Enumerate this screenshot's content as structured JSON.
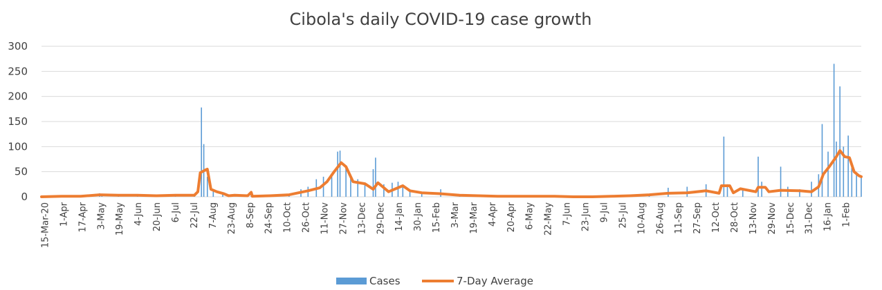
{
  "chart_data": {
    "type": "bar",
    "title": "Cibola's daily COVID-19 case growth",
    "xlabel": "",
    "ylabel": "",
    "ylim": [
      0,
      300
    ],
    "yticks": [
      "0",
      "50",
      "100",
      "150",
      "200",
      "250",
      "300"
    ],
    "grid": true,
    "legend_position": "bottom",
    "date_range": [
      "2020-03-15",
      "2022-02-05"
    ],
    "x_tick_labels": [
      "15-Mar-20",
      "1-Apr",
      "17-Apr",
      "3-May",
      "19-May",
      "4-Jun",
      "20-Jun",
      "6-Jul",
      "22-Jul",
      "7-Aug",
      "23-Aug",
      "8-Sep",
      "24-Sep",
      "10-Oct",
      "26-Oct",
      "11-Nov",
      "27-Nov",
      "13-Dec",
      "29-Dec",
      "14-Jan",
      "30-Jan",
      "15-Feb",
      "3-Mar",
      "19-Mar",
      "4-Apr",
      "20-Apr",
      "6-May",
      "22-May",
      "7-Jun",
      "23-Jun",
      "9-Jul",
      "25-Jul",
      "10-Aug",
      "26-Aug",
      "11-Sep",
      "27-Sep",
      "12-Oct",
      "28-Oct",
      "13-Nov",
      "29-Nov",
      "15-Dec",
      "31-Dec",
      "16-Jan",
      "1-Feb"
    ],
    "series": [
      {
        "name": "Cases",
        "type": "bar",
        "color": "#5b9bd5",
        "approx_points": [
          [
            "2020-03-15",
            0
          ],
          [
            "2020-04-01",
            1
          ],
          [
            "2020-04-20",
            2
          ],
          [
            "2020-05-03",
            7
          ],
          [
            "2020-05-05",
            5
          ],
          [
            "2020-05-19",
            4
          ],
          [
            "2020-06-04",
            5
          ],
          [
            "2020-06-20",
            2
          ],
          [
            "2020-07-06",
            5
          ],
          [
            "2020-07-22",
            3
          ],
          [
            "2020-07-28",
            178
          ],
          [
            "2020-07-30",
            105
          ],
          [
            "2020-08-02",
            40
          ],
          [
            "2020-08-07",
            12
          ],
          [
            "2020-08-15",
            8
          ],
          [
            "2020-08-23",
            5
          ],
          [
            "2020-09-01",
            2
          ],
          [
            "2020-09-08",
            10
          ],
          [
            "2020-09-15",
            2
          ],
          [
            "2020-09-24",
            4
          ],
          [
            "2020-10-10",
            6
          ],
          [
            "2020-10-20",
            15
          ],
          [
            "2020-10-26",
            20
          ],
          [
            "2020-11-02",
            35
          ],
          [
            "2020-11-08",
            40
          ],
          [
            "2020-11-15",
            45
          ],
          [
            "2020-11-20",
            90
          ],
          [
            "2020-11-22",
            92
          ],
          [
            "2020-11-27",
            60
          ],
          [
            "2020-12-01",
            40
          ],
          [
            "2020-12-07",
            35
          ],
          [
            "2020-12-13",
            25
          ],
          [
            "2020-12-20",
            55
          ],
          [
            "2020-12-22",
            78
          ],
          [
            "2020-12-29",
            25
          ],
          [
            "2021-01-05",
            28
          ],
          [
            "2021-01-10",
            30
          ],
          [
            "2021-01-14",
            20
          ],
          [
            "2021-01-20",
            10
          ],
          [
            "2021-01-30",
            8
          ],
          [
            "2021-02-15",
            15
          ],
          [
            "2021-03-03",
            3
          ],
          [
            "2021-03-19",
            2
          ],
          [
            "2021-04-04",
            2
          ],
          [
            "2021-04-20",
            1
          ],
          [
            "2021-05-06",
            1
          ],
          [
            "2021-05-22",
            1
          ],
          [
            "2021-06-07",
            0
          ],
          [
            "2021-06-23",
            1
          ],
          [
            "2021-07-09",
            1
          ],
          [
            "2021-07-25",
            2
          ],
          [
            "2021-08-10",
            5
          ],
          [
            "2021-08-26",
            18
          ],
          [
            "2021-09-11",
            20
          ],
          [
            "2021-09-27",
            25
          ],
          [
            "2021-10-12",
            120
          ],
          [
            "2021-10-15",
            25
          ],
          [
            "2021-10-28",
            15
          ],
          [
            "2021-11-10",
            80
          ],
          [
            "2021-11-13",
            30
          ],
          [
            "2021-11-29",
            60
          ],
          [
            "2021-12-05",
            20
          ],
          [
            "2021-12-15",
            15
          ],
          [
            "2021-12-25",
            30
          ],
          [
            "2021-12-31",
            45
          ],
          [
            "2022-01-03",
            145
          ],
          [
            "2022-01-08",
            90
          ],
          [
            "2022-01-13",
            265
          ],
          [
            "2022-01-15",
            110
          ],
          [
            "2022-01-18",
            220
          ],
          [
            "2022-01-21",
            100
          ],
          [
            "2022-01-25",
            122
          ],
          [
            "2022-01-28",
            60
          ],
          [
            "2022-02-01",
            45
          ],
          [
            "2022-02-05",
            40
          ]
        ]
      },
      {
        "name": "7-Day Average",
        "type": "line",
        "color": "#ed7d31",
        "approx_points": [
          [
            "2020-03-15",
            0
          ],
          [
            "2020-04-01",
            1
          ],
          [
            "2020-04-17",
            1
          ],
          [
            "2020-05-03",
            4
          ],
          [
            "2020-05-19",
            3
          ],
          [
            "2020-06-04",
            3
          ],
          [
            "2020-06-20",
            2
          ],
          [
            "2020-07-06",
            3
          ],
          [
            "2020-07-22",
            3
          ],
          [
            "2020-07-25",
            10
          ],
          [
            "2020-07-27",
            48
          ],
          [
            "2020-07-31",
            53
          ],
          [
            "2020-08-02",
            55
          ],
          [
            "2020-08-05",
            15
          ],
          [
            "2020-08-10",
            10
          ],
          [
            "2020-08-16",
            6
          ],
          [
            "2020-08-20",
            2
          ],
          [
            "2020-08-25",
            3
          ],
          [
            "2020-09-05",
            2
          ],
          [
            "2020-09-08",
            9
          ],
          [
            "2020-09-09",
            1
          ],
          [
            "2020-09-24",
            2
          ],
          [
            "2020-10-10",
            4
          ],
          [
            "2020-10-26",
            12
          ],
          [
            "2020-11-05",
            18
          ],
          [
            "2020-11-11",
            30
          ],
          [
            "2020-11-17",
            50
          ],
          [
            "2020-11-23",
            68
          ],
          [
            "2020-11-27",
            60
          ],
          [
            "2020-12-03",
            30
          ],
          [
            "2020-12-13",
            26
          ],
          [
            "2020-12-20",
            15
          ],
          [
            "2020-12-24",
            28
          ],
          [
            "2020-12-29",
            18
          ],
          [
            "2021-01-02",
            10
          ],
          [
            "2021-01-10",
            18
          ],
          [
            "2021-01-14",
            22
          ],
          [
            "2021-01-20",
            12
          ],
          [
            "2021-01-30",
            8
          ],
          [
            "2021-02-15",
            6
          ],
          [
            "2021-03-03",
            3
          ],
          [
            "2021-03-19",
            2
          ],
          [
            "2021-04-04",
            1
          ],
          [
            "2021-04-20",
            1
          ],
          [
            "2021-05-06",
            1
          ],
          [
            "2021-05-22",
            1
          ],
          [
            "2021-06-07",
            0
          ],
          [
            "2021-06-23",
            0
          ],
          [
            "2021-07-09",
            1
          ],
          [
            "2021-07-25",
            2
          ],
          [
            "2021-08-10",
            4
          ],
          [
            "2021-08-26",
            7
          ],
          [
            "2021-09-11",
            8
          ],
          [
            "2021-09-27",
            12
          ],
          [
            "2021-10-08",
            7
          ],
          [
            "2021-10-10",
            22
          ],
          [
            "2021-10-17",
            22
          ],
          [
            "2021-10-20",
            8
          ],
          [
            "2021-10-26",
            16
          ],
          [
            "2021-11-08",
            10
          ],
          [
            "2021-11-10",
            19
          ],
          [
            "2021-11-16",
            19
          ],
          [
            "2021-11-19",
            10
          ],
          [
            "2021-11-29",
            13
          ],
          [
            "2021-12-15",
            12
          ],
          [
            "2021-12-25",
            10
          ],
          [
            "2021-12-31",
            20
          ],
          [
            "2022-01-04",
            45
          ],
          [
            "2022-01-09",
            60
          ],
          [
            "2022-01-15",
            80
          ],
          [
            "2022-01-18",
            92
          ],
          [
            "2022-01-22",
            80
          ],
          [
            "2022-01-26",
            78
          ],
          [
            "2022-01-30",
            50
          ],
          [
            "2022-02-03",
            42
          ],
          [
            "2022-02-05",
            40
          ]
        ]
      }
    ]
  }
}
